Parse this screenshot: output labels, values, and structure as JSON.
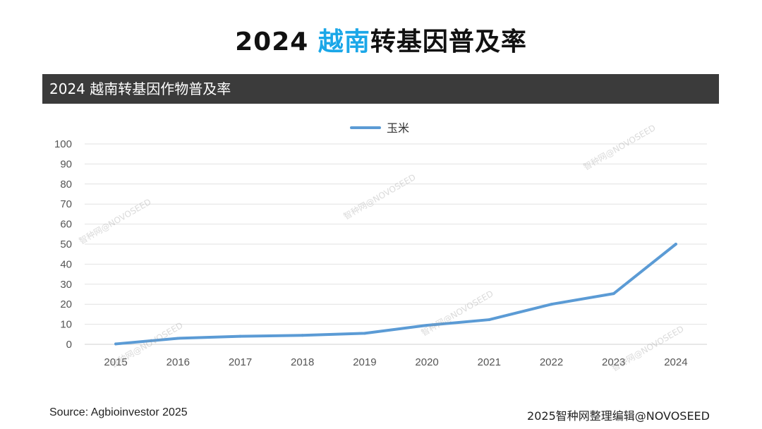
{
  "header": {
    "title_prefix": "2024 ",
    "title_highlight": "越南",
    "title_suffix": "转基因普及率",
    "highlight_color": "#1aa7e8"
  },
  "banner": {
    "text": "2024 越南转基因作物普及率"
  },
  "chart_data": {
    "type": "line",
    "title": "2024 越南转基因作物普及率",
    "categories": [
      "2015",
      "2016",
      "2017",
      "2018",
      "2019",
      "2020",
      "2021",
      "2022",
      "2023",
      "2024"
    ],
    "series": [
      {
        "name": "玉米",
        "color": "#5b9bd5",
        "values": [
          0.2,
          3,
          4,
          4.5,
          5.5,
          9.5,
          12.3,
          20,
          25.3,
          50
        ]
      }
    ],
    "ylim": [
      0,
      100
    ],
    "yticks": [
      "0",
      "10",
      "20",
      "30",
      "40",
      "50",
      "60",
      "70",
      "80",
      "90",
      "100"
    ],
    "grid": true,
    "legend_position": "top-center"
  },
  "footer": {
    "source": "Source: Agbioinvestor 2025",
    "credit": "2025智种网整理编辑@NOVOSEED"
  },
  "watermark": "智种网@NOVOSEED"
}
